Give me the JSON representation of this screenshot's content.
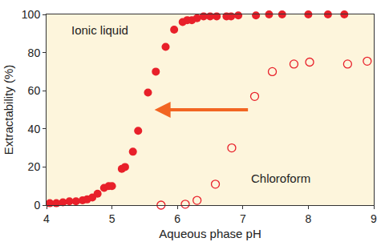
{
  "chart_data": {
    "type": "scatter",
    "x_label": "Aqueous phase pH",
    "y_label": "Extractability (%)",
    "xlim": [
      4,
      9
    ],
    "xticks": [
      4,
      5,
      6,
      7,
      8,
      9
    ],
    "ylim": [
      0,
      100
    ],
    "yticks": [
      0,
      20,
      40,
      60,
      80,
      100
    ],
    "grid": false,
    "series": [
      {
        "name": "Ionic liquid",
        "color": "#e8202a",
        "marker": "circle",
        "x": [
          4.05,
          4.15,
          4.25,
          4.35,
          4.45,
          4.55,
          4.62,
          4.7,
          4.78,
          4.88,
          4.95,
          5.0,
          5.15,
          5.2,
          5.32,
          5.4,
          5.55,
          5.67,
          5.82,
          5.95,
          6.08,
          6.15,
          6.22,
          6.3,
          6.4,
          6.5,
          6.6,
          6.75,
          6.82,
          6.93,
          7.2,
          7.4,
          7.6,
          8.0,
          8.3,
          8.55
        ],
        "values": [
          1,
          1,
          1.5,
          2,
          2,
          2.5,
          3,
          4,
          6,
          9,
          10,
          10,
          19,
          20,
          28,
          39,
          59,
          70,
          83,
          92,
          96,
          97,
          97,
          98,
          99,
          99,
          99,
          99,
          99,
          99.5,
          99.5,
          100,
          100,
          100,
          100,
          100
        ]
      },
      {
        "name": "Chloroform",
        "color": "#e8202a",
        "marker": "circle-open",
        "x": [
          5.75,
          6.12,
          6.3,
          6.58,
          6.83,
          7.18,
          7.45,
          7.78,
          8.02,
          8.6,
          8.9
        ],
        "values": [
          0,
          0.5,
          2.5,
          11,
          30,
          57,
          70,
          74,
          75,
          74,
          75.5
        ]
      }
    ]
  }
}
